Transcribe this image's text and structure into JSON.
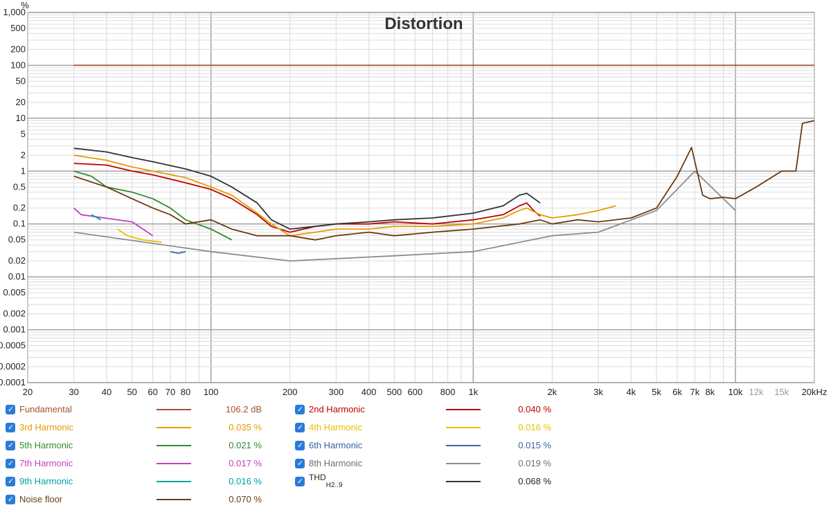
{
  "chart_data": {
    "type": "line",
    "title": "Distortion",
    "ylabel": "%",
    "xscale": "log",
    "yscale": "log",
    "xlim": [
      20,
      20000
    ],
    "ylim": [
      0.0001,
      1000
    ],
    "x_ticks": [
      {
        "v": 20,
        "t": "20",
        "minor": false
      },
      {
        "v": 30,
        "t": "30",
        "minor": false
      },
      {
        "v": 40,
        "t": "40",
        "minor": false
      },
      {
        "v": 50,
        "t": "50",
        "minor": false
      },
      {
        "v": 60,
        "t": "60",
        "minor": false
      },
      {
        "v": 70,
        "t": "70",
        "minor": false
      },
      {
        "v": 80,
        "t": "80",
        "minor": false
      },
      {
        "v": 100,
        "t": "100",
        "minor": false
      },
      {
        "v": 200,
        "t": "200",
        "minor": false
      },
      {
        "v": 300,
        "t": "300",
        "minor": false
      },
      {
        "v": 400,
        "t": "400",
        "minor": false
      },
      {
        "v": 500,
        "t": "500",
        "minor": false
      },
      {
        "v": 600,
        "t": "600",
        "minor": false
      },
      {
        "v": 800,
        "t": "800",
        "minor": false
      },
      {
        "v": 1000,
        "t": "1k",
        "minor": false
      },
      {
        "v": 2000,
        "t": "2k",
        "minor": false
      },
      {
        "v": 3000,
        "t": "3k",
        "minor": false
      },
      {
        "v": 4000,
        "t": "4k",
        "minor": false
      },
      {
        "v": 5000,
        "t": "5k",
        "minor": false
      },
      {
        "v": 6000,
        "t": "6k",
        "minor": false
      },
      {
        "v": 7000,
        "t": "7k",
        "minor": false
      },
      {
        "v": 8000,
        "t": "8k",
        "minor": false
      },
      {
        "v": 10000,
        "t": "10k",
        "minor": false
      },
      {
        "v": 12000,
        "t": "12k",
        "minor": true
      },
      {
        "v": 15000,
        "t": "15k",
        "minor": true
      },
      {
        "v": 20000,
        "t": "20kHz",
        "minor": false
      }
    ],
    "y_ticks": [
      {
        "v": 1000,
        "t": "1,000"
      },
      {
        "v": 500,
        "t": "500"
      },
      {
        "v": 200,
        "t": "200"
      },
      {
        "v": 100,
        "t": "100"
      },
      {
        "v": 50,
        "t": "50"
      },
      {
        "v": 20,
        "t": "20"
      },
      {
        "v": 10,
        "t": "10"
      },
      {
        "v": 5,
        "t": "5"
      },
      {
        "v": 2,
        "t": "2"
      },
      {
        "v": 1,
        "t": "1"
      },
      {
        "v": 0.5,
        "t": "0.5"
      },
      {
        "v": 0.2,
        "t": "0.2"
      },
      {
        "v": 0.1,
        "t": "0.1"
      },
      {
        "v": 0.05,
        "t": "0.05"
      },
      {
        "v": 0.02,
        "t": "0.02"
      },
      {
        "v": 0.01,
        "t": "0.01"
      },
      {
        "v": 0.005,
        "t": "0.005"
      },
      {
        "v": 0.002,
        "t": "0.002"
      },
      {
        "v": 0.001,
        "t": "0.001"
      },
      {
        "v": 0.0005,
        "t": "0.0005"
      },
      {
        "v": 0.0002,
        "t": "0.0002"
      },
      {
        "v": 0.0001,
        "t": "0.0001"
      }
    ],
    "series": [
      {
        "name": "Fundamental",
        "color": "#a0522d",
        "value": "106.2 dB",
        "x": [
          30,
          20000
        ],
        "y": [
          100,
          100
        ]
      },
      {
        "name": "2nd Harmonic",
        "color": "#c00000",
        "value": "0.040 %",
        "x": [
          30,
          40,
          50,
          60,
          80,
          100,
          120,
          150,
          170,
          200,
          250,
          300,
          400,
          500,
          700,
          1000,
          1300,
          1500,
          1600,
          1700,
          1800
        ],
        "y": [
          1.4,
          1.3,
          1.0,
          0.85,
          0.6,
          0.45,
          0.3,
          0.15,
          0.09,
          0.07,
          0.09,
          0.1,
          0.1,
          0.11,
          0.1,
          0.12,
          0.15,
          0.22,
          0.25,
          0.18,
          0.14
        ]
      },
      {
        "name": "3rd Harmonic",
        "color": "#e69b00",
        "value": "0.035 %",
        "x": [
          30,
          40,
          50,
          60,
          80,
          100,
          120,
          150,
          170,
          200,
          250,
          300,
          400,
          500,
          700,
          1000,
          1300,
          1500,
          1600,
          1800,
          2000,
          2500,
          3000,
          3500
        ],
        "y": [
          2.0,
          1.6,
          1.2,
          1.0,
          0.75,
          0.5,
          0.35,
          0.16,
          0.1,
          0.06,
          0.07,
          0.08,
          0.08,
          0.09,
          0.09,
          0.1,
          0.13,
          0.18,
          0.2,
          0.15,
          0.13,
          0.15,
          0.18,
          0.22
        ]
      },
      {
        "name": "4th Harmonic",
        "color": "#e8c000",
        "value": "0.016 %",
        "x": [
          44,
          48,
          55,
          65
        ],
        "y": [
          0.08,
          0.06,
          0.05,
          0.045
        ]
      },
      {
        "name": "5th Harmonic",
        "color": "#2e8b2e",
        "value": "0.021 %",
        "x": [
          30,
          35,
          40,
          50,
          60,
          70,
          80,
          100,
          120
        ],
        "y": [
          1.0,
          0.8,
          0.5,
          0.4,
          0.3,
          0.2,
          0.12,
          0.08,
          0.05
        ]
      },
      {
        "name": "6th Harmonic",
        "color": "#3a62a7",
        "value": "0.015 %",
        "x": [
          70,
          75,
          80
        ],
        "y": [
          0.03,
          0.028,
          0.03
        ]
      },
      {
        "name": "7th Harmonic",
        "color": "#c040c0",
        "value": "0.017 %",
        "x": [
          30,
          32,
          50,
          55,
          60
        ],
        "y": [
          0.2,
          0.15,
          0.11,
          0.08,
          0.06
        ]
      },
      {
        "name": "8th Harmonic",
        "color": "#8c8c8c",
        "value": "0.019 %",
        "x": [
          30,
          100,
          200,
          500,
          1000,
          2000,
          3000,
          5000,
          7000,
          10000
        ],
        "y": [
          0.07,
          0.03,
          0.02,
          0.025,
          0.03,
          0.06,
          0.07,
          0.18,
          1.0,
          0.18
        ]
      },
      {
        "name": "9th Harmonic",
        "color": "#00a0a0",
        "value": "0.016 %",
        "x": [
          35,
          38
        ],
        "y": [
          0.15,
          0.12
        ]
      },
      {
        "name": "THD",
        "color": "#333333",
        "value": "0.068 %",
        "x": [
          30,
          40,
          50,
          60,
          80,
          100,
          120,
          150,
          170,
          200,
          250,
          300,
          400,
          500,
          700,
          1000,
          1300,
          1500,
          1600,
          1800
        ],
        "y": [
          2.7,
          2.3,
          1.8,
          1.5,
          1.1,
          0.8,
          0.5,
          0.25,
          0.12,
          0.08,
          0.09,
          0.1,
          0.11,
          0.12,
          0.13,
          0.16,
          0.22,
          0.35,
          0.38,
          0.25
        ]
      },
      {
        "name": "Noise floor",
        "color": "#6b3a10",
        "value": "0.070 %",
        "x": [
          30,
          40,
          50,
          60,
          70,
          80,
          100,
          120,
          150,
          170,
          200,
          250,
          300,
          400,
          500,
          700,
          1000,
          1500,
          1800,
          2000,
          2500,
          3000,
          4000,
          5000,
          6000,
          6800,
          7500,
          8000,
          9000,
          10000,
          12000,
          15000,
          17000,
          18000,
          20000
        ],
        "y": [
          0.8,
          0.5,
          0.3,
          0.2,
          0.15,
          0.1,
          0.12,
          0.08,
          0.06,
          0.06,
          0.06,
          0.05,
          0.06,
          0.07,
          0.06,
          0.07,
          0.08,
          0.1,
          0.12,
          0.1,
          0.12,
          0.11,
          0.13,
          0.2,
          0.8,
          2.8,
          0.35,
          0.3,
          0.32,
          0.3,
          0.5,
          1.0,
          1.0,
          8.0,
          9.0
        ]
      }
    ]
  },
  "legend": {
    "fundamental": {
      "label": "Fundamental",
      "value": "106.2 dB"
    },
    "h2": {
      "label": "2nd Harmonic",
      "value": "0.040 %"
    },
    "h3": {
      "label": "3rd Harmonic",
      "value": "0.035 %"
    },
    "h4": {
      "label": "4th Harmonic",
      "value": "0.016 %"
    },
    "h5": {
      "label": "5th Harmonic",
      "value": "0.021 %"
    },
    "h6": {
      "label": "6th Harmonic",
      "value": "0.015 %"
    },
    "h7": {
      "label": "7th Harmonic",
      "value": "0.017 %"
    },
    "h8": {
      "label": "8th Harmonic",
      "value": "0.019 %"
    },
    "h9": {
      "label": "9th Harmonic",
      "value": "0.016 %"
    },
    "thd": {
      "label": "THD",
      "sub": "H2..9",
      "value": "0.068 %"
    },
    "noise": {
      "label": "Noise floor",
      "value": "0.070 %"
    }
  },
  "colors": {
    "fundamental": "#a0522d",
    "h2": "#c00000",
    "h3": "#e69b00",
    "h4": "#e8c000",
    "h5": "#2e8b2e",
    "h6": "#3a62a7",
    "h7": "#c040c0",
    "h8": "#8c8c8c",
    "h9": "#00a0a0",
    "thd": "#333333",
    "noise": "#6b3a10",
    "checkbox": "#2a7bd8"
  },
  "icons": {
    "checkbox": "checkbox-checked-icon"
  }
}
